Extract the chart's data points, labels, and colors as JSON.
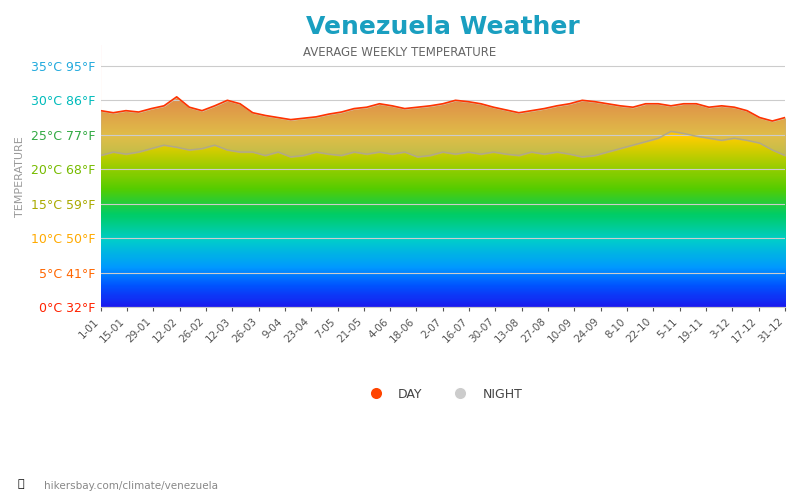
{
  "title": "Venezuela Weather",
  "subtitle": "AVERAGE WEEKLY TEMPERATURE",
  "ylabel": "TEMPERATURE",
  "watermark": "hikersbay.com/climate/venezuela",
  "title_color": "#1a9fc0",
  "subtitle_color": "#666666",
  "ylabel_color": "#999999",
  "ytick_labels": [
    "35°C 95°F",
    "30°C 86°F",
    "25°C 77°F",
    "20°C 68°F",
    "15°C 59°F",
    "10°C 50°F",
    "5°C 41°F",
    "0°C 32°F"
  ],
  "ytick_values": [
    35,
    30,
    25,
    20,
    15,
    10,
    5,
    0
  ],
  "ytick_colors": [
    "#ff2200",
    "#ff6600",
    "#ffaa00",
    "#aaaa00",
    "#77bb00",
    "#33aa44",
    "#00bbbb",
    "#22aadd"
  ],
  "ylim": [
    0,
    38
  ],
  "xtick_labels": [
    "1-01",
    "15-01",
    "29-01",
    "12-02",
    "26-02",
    "12-03",
    "26-03",
    "9-04",
    "23-04",
    "7-05",
    "21-05",
    "4-06",
    "18-06",
    "2-07",
    "16-07",
    "30-07",
    "13-08",
    "27-08",
    "10-09",
    "24-09",
    "8-10",
    "22-10",
    "5-11",
    "19-11",
    "3-12",
    "17-12",
    "31-12"
  ],
  "day_temps": [
    28.5,
    28.2,
    28.5,
    28.3,
    28.8,
    29.2,
    30.5,
    29.0,
    28.5,
    29.2,
    30.0,
    29.5,
    28.2,
    27.8,
    27.5,
    27.2,
    27.4,
    27.6,
    28.0,
    28.3,
    28.8,
    29.0,
    29.5,
    29.2,
    28.8,
    29.0,
    29.2,
    29.5,
    30.0,
    29.8,
    29.5,
    29.0,
    28.6,
    28.2,
    28.5,
    28.8,
    29.2,
    29.5,
    30.0,
    29.8,
    29.5,
    29.2,
    29.0,
    29.5,
    29.5,
    29.2,
    29.5,
    29.5,
    29.0,
    29.2,
    29.0,
    28.5,
    27.5,
    27.0,
    27.5
  ],
  "night_temps": [
    22.0,
    22.5,
    22.2,
    22.5,
    23.0,
    23.5,
    23.2,
    22.8,
    23.0,
    23.5,
    22.8,
    22.5,
    22.5,
    22.0,
    22.5,
    21.8,
    22.0,
    22.5,
    22.2,
    22.0,
    22.5,
    22.2,
    22.5,
    22.2,
    22.5,
    21.8,
    22.0,
    22.5,
    22.2,
    22.5,
    22.2,
    22.5,
    22.2,
    22.0,
    22.5,
    22.2,
    22.5,
    22.2,
    21.8,
    22.0,
    22.5,
    23.0,
    23.5,
    24.0,
    24.5,
    25.5,
    25.2,
    24.8,
    24.5,
    24.2,
    24.5,
    24.2,
    23.8,
    22.8,
    22.0
  ],
  "background_color": "#ffffff",
  "grid_color": "#cccccc",
  "legend_day_color": "#ff4400",
  "legend_night_color": "#cccccc",
  "rainbow_colors": [
    [
      0.0,
      "#1a1aee"
    ],
    [
      0.08,
      "#0055ff"
    ],
    [
      0.15,
      "#0099ff"
    ],
    [
      0.25,
      "#00cccc"
    ],
    [
      0.35,
      "#00cc66"
    ],
    [
      0.45,
      "#55cc00"
    ],
    [
      0.55,
      "#aacc00"
    ],
    [
      0.65,
      "#ffcc00"
    ],
    [
      0.75,
      "#ff8800"
    ],
    [
      0.87,
      "#ff4400"
    ],
    [
      1.0,
      "#ff0000"
    ]
  ]
}
